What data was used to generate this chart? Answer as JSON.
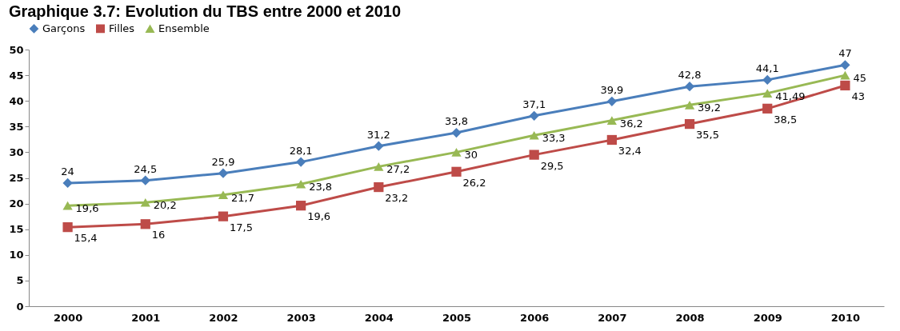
{
  "chart_data": {
    "type": "line",
    "title": "Graphique 3.7: Evolution du TBS entre 2000 et 2010",
    "categories": [
      "2000",
      "2001",
      "2002",
      "2003",
      "2004",
      "2005",
      "2006",
      "2007",
      "2008",
      "2009",
      "2010"
    ],
    "series": [
      {
        "name": "Garçons",
        "color": "#4a7ebb",
        "marker": "diamond",
        "values": [
          24,
          24.5,
          25.9,
          28.1,
          31.2,
          33.8,
          37.1,
          39.9,
          42.8,
          44.1,
          47
        ],
        "value_labels": [
          "24",
          "24,5",
          "25,9",
          "28,1",
          "31,2",
          "33,8",
          "37,1",
          "39,9",
          "42,8",
          "44,1",
          "47"
        ]
      },
      {
        "name": "Filles",
        "color": "#be4b48",
        "marker": "square",
        "values": [
          15.4,
          16,
          17.5,
          19.6,
          23.2,
          26.2,
          29.5,
          32.4,
          35.5,
          38.5,
          43
        ],
        "value_labels": [
          "15,4",
          "16",
          "17,5",
          "19,6",
          "23,2",
          "26,2",
          "29,5",
          "32,4",
          "35,5",
          "38,5",
          "43"
        ]
      },
      {
        "name": "Ensemble",
        "color": "#98b954",
        "marker": "triangle",
        "values": [
          19.6,
          20.2,
          21.7,
          23.8,
          27.2,
          30,
          33.3,
          36.2,
          39.2,
          41.49,
          45
        ],
        "value_labels": [
          "19,6",
          "20,2",
          "21,7",
          "23,8",
          "27,2",
          "30",
          "33,3",
          "36,2",
          "39,2",
          "41,49",
          "45"
        ]
      }
    ],
    "ylim": [
      0,
      50
    ],
    "yticks": [
      0,
      5,
      10,
      15,
      20,
      25,
      30,
      35,
      40,
      45,
      50
    ],
    "grid": false,
    "legend": "top",
    "line_style": "solid"
  }
}
